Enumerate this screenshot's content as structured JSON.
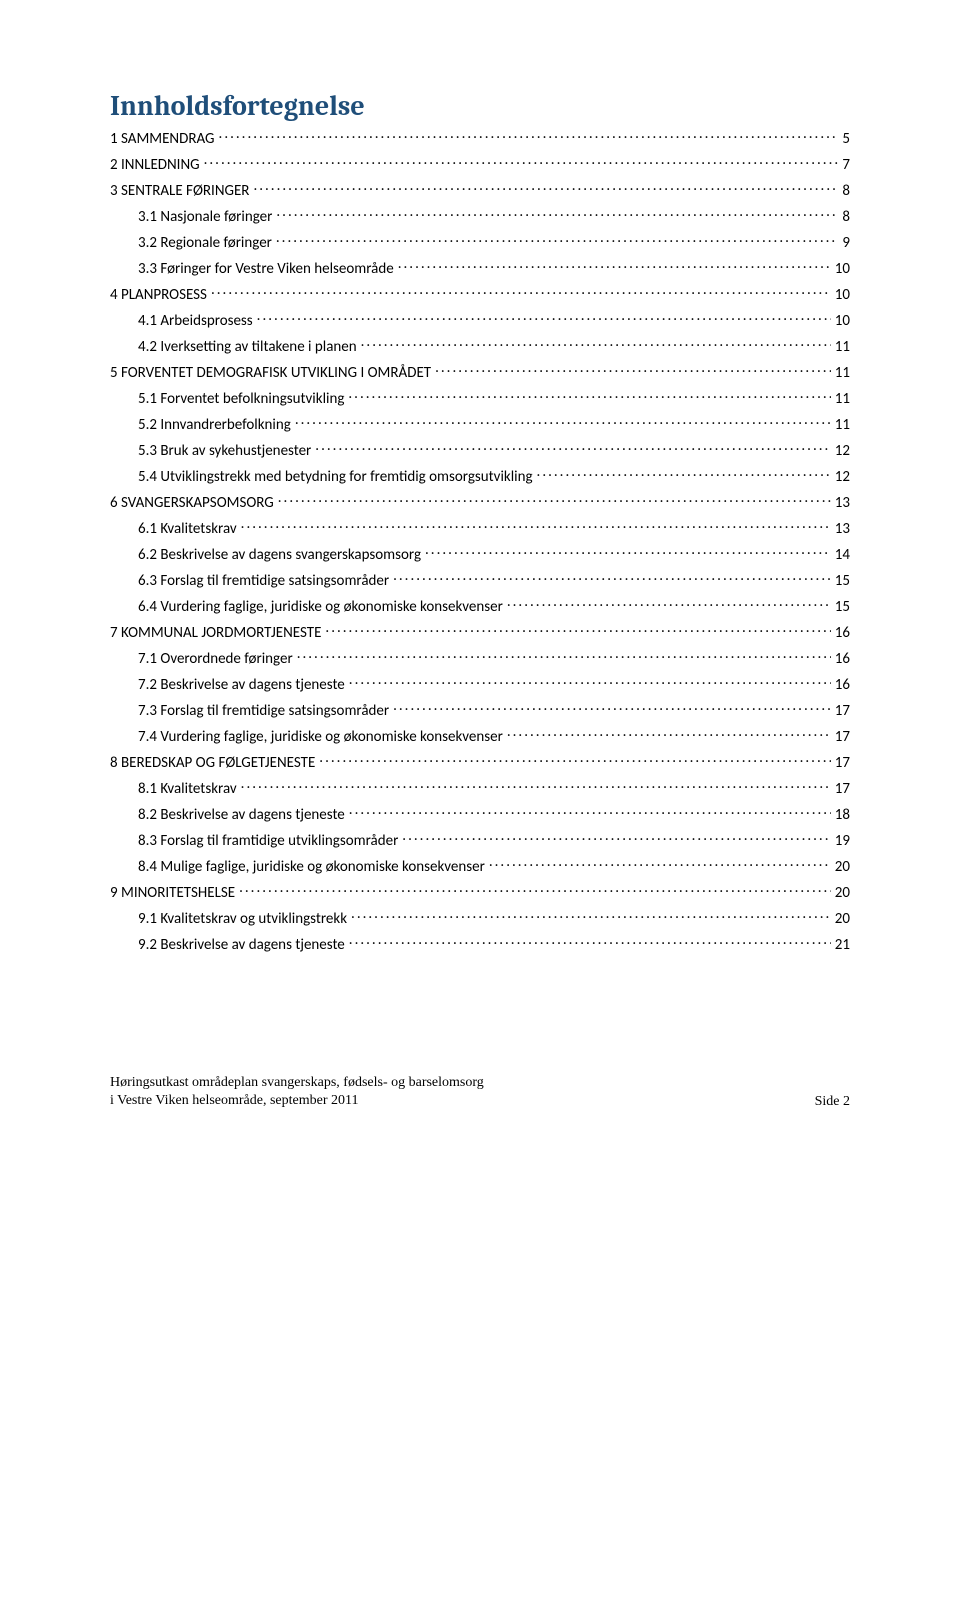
{
  "title": "Innholdsfortegnelse",
  "title_color": "#1f4e79",
  "title_fontsize": 28,
  "body_fontsize": 15,
  "background_color": "#ffffff",
  "text_color": "#000000",
  "footer": {
    "line1": "Høringsutkast områdeplan svangerskaps, fødsels- og barselomsorg",
    "line2": "i Vestre Viken helseområde, september 2011",
    "page": "Side 2"
  },
  "toc": [
    {
      "level": 1,
      "label": "1 SAMMENDRAG",
      "page": "5"
    },
    {
      "level": 1,
      "label": "2 INNLEDNING",
      "page": "7"
    },
    {
      "level": 1,
      "label": "3 SENTRALE FØRINGER",
      "page": "8"
    },
    {
      "level": 2,
      "label": "3.1 Nasjonale føringer",
      "page": "8"
    },
    {
      "level": 2,
      "label": "3.2 Regionale føringer",
      "page": "9"
    },
    {
      "level": 2,
      "label": "3.3 Føringer for Vestre Viken helseområde",
      "page": "10"
    },
    {
      "level": 1,
      "label": "4 PLANPROSESS",
      "page": "10"
    },
    {
      "level": 2,
      "label": "4.1 Arbeidsprosess",
      "page": "10"
    },
    {
      "level": 2,
      "label": "4.2 Iverksetting av tiltakene i planen",
      "page": "11"
    },
    {
      "level": 1,
      "label": "5 FORVENTET DEMOGRAFISK UTVIKLING I OMRÅDET",
      "page": "11"
    },
    {
      "level": 2,
      "label": "5.1 Forventet befolkningsutvikling",
      "page": "11"
    },
    {
      "level": 2,
      "label": "5.2 Innvandrerbefolkning",
      "page": "11"
    },
    {
      "level": 2,
      "label": "5.3 Bruk av sykehustjenester",
      "page": "12"
    },
    {
      "level": 2,
      "label": "5.4 Utviklingstrekk med betydning for fremtidig omsorgsutvikling",
      "page": "12"
    },
    {
      "level": 1,
      "label": "6 SVANGERSKAPSOMSORG",
      "page": "13"
    },
    {
      "level": 2,
      "label": "6.1 Kvalitetskrav",
      "page": "13"
    },
    {
      "level": 2,
      "label": "6.2 Beskrivelse av dagens svangerskapsomsorg",
      "page": "14"
    },
    {
      "level": 2,
      "label": "6.3 Forslag til fremtidige satsingsområder",
      "page": "15"
    },
    {
      "level": 2,
      "label": "6.4 Vurdering faglige, juridiske og økonomiske konsekvenser",
      "page": "15"
    },
    {
      "level": 1,
      "label": "7 KOMMUNAL JORDMORTJENESTE",
      "page": "16"
    },
    {
      "level": 2,
      "label": "7.1 Overordnede føringer",
      "page": "16"
    },
    {
      "level": 2,
      "label": "7.2 Beskrivelse av dagens tjeneste",
      "page": "16"
    },
    {
      "level": 2,
      "label": "7.3 Forslag til fremtidige satsingsområder",
      "page": "17"
    },
    {
      "level": 2,
      "label": "7.4 Vurdering faglige, juridiske og økonomiske konsekvenser",
      "page": "17"
    },
    {
      "level": 1,
      "label": "8 BEREDSKAP OG FØLGETJENESTE",
      "page": "17"
    },
    {
      "level": 2,
      "label": "8.1 Kvalitetskrav",
      "page": "17"
    },
    {
      "level": 2,
      "label": "8.2 Beskrivelse av dagens tjeneste",
      "page": "18"
    },
    {
      "level": 2,
      "label": "8.3 Forslag til framtidige utviklingsområder",
      "page": "19"
    },
    {
      "level": 2,
      "label": "8.4 Mulige faglige, juridiske og økonomiske konsekvenser",
      "page": "20"
    },
    {
      "level": 1,
      "label": "9 MINORITETSHELSE",
      "page": "20"
    },
    {
      "level": 2,
      "label": "9.1 Kvalitetskrav og utviklingstrekk",
      "page": "20"
    },
    {
      "level": 2,
      "label": "9.2 Beskrivelse av dagens tjeneste",
      "page": "21"
    }
  ]
}
